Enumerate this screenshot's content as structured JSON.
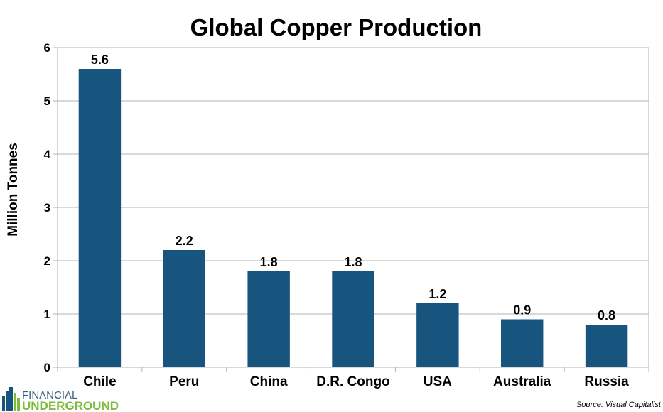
{
  "chart_data": {
    "type": "bar",
    "title": "Global Copper Production",
    "xlabel": "",
    "ylabel": "Million Tonnes",
    "categories": [
      "Chile",
      "Peru",
      "China",
      "D.R. Congo",
      "USA",
      "Australia",
      "Russia"
    ],
    "values": [
      5.6,
      2.2,
      1.8,
      1.8,
      1.2,
      0.9,
      0.8
    ],
    "data_labels": [
      "5.6",
      "2.2",
      "1.8",
      "1.8",
      "1.2",
      "0.9",
      "0.8"
    ],
    "ylim": [
      0,
      6
    ],
    "yticks": [
      0,
      1,
      2,
      3,
      4,
      5,
      6
    ],
    "ytick_labels": [
      "0",
      "1",
      "2",
      "3",
      "4",
      "5",
      "6"
    ],
    "grid": true,
    "legend": "none",
    "bar_color": "#17557f",
    "source": "Source: Visual Capitalist"
  },
  "logo": {
    "line1": "FINANCIAL",
    "line2": "UNDERGROUND",
    "icon": "city-skyline-icon"
  }
}
